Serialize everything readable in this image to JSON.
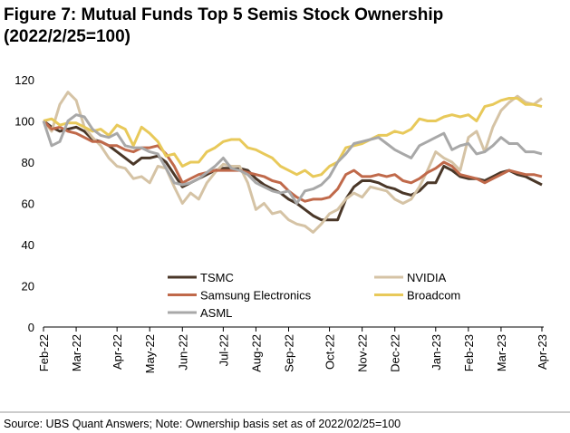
{
  "chart_data": {
    "type": "line",
    "title": [
      "Figure 7: Mutual Funds Top 5 Semis Stock Ownership",
      "(2022/2/25=100)"
    ],
    "note": "Source: UBS Quant Answers; Note: Ownership basis set as of 2022/02/25=100",
    "categories": [
      "Feb-22",
      null,
      null,
      null,
      "Mar-22",
      null,
      null,
      null,
      null,
      "Apr-22",
      null,
      null,
      null,
      "May-22",
      null,
      null,
      null,
      "Jun-22",
      null,
      null,
      null,
      null,
      "Jul-22",
      null,
      null,
      null,
      "Aug-22",
      null,
      null,
      null,
      "Sep-22",
      null,
      null,
      null,
      null,
      "Oct-22",
      null,
      null,
      null,
      "Nov-22",
      null,
      null,
      null,
      "Dec-22",
      null,
      null,
      null,
      null,
      "Jan-23",
      null,
      null,
      null,
      "Feb-23",
      null,
      null,
      null,
      "Mar-23",
      null,
      null,
      null,
      null,
      "Apr-23"
    ],
    "ylim": [
      0,
      120
    ],
    "yticks": [
      0,
      20,
      40,
      60,
      80,
      100,
      120
    ],
    "grid": false,
    "series": [
      {
        "name": "TSMC",
        "color": "#4a3728",
        "values": [
          100,
          97,
          95,
          96,
          97,
          95,
          91,
          90,
          88,
          85,
          82,
          79,
          82,
          82,
          83,
          80,
          74,
          68,
          70,
          72,
          74,
          76,
          77,
          77,
          77,
          76,
          72,
          69,
          67,
          65,
          62,
          60,
          57,
          54,
          52,
          52,
          52,
          62,
          68,
          71,
          71,
          70,
          68,
          67,
          65,
          64,
          66,
          70,
          70,
          78,
          76,
          73,
          72,
          72,
          71,
          73,
          75,
          76,
          74,
          73,
          71,
          69
        ]
      },
      {
        "name": "NVIDIA",
        "color": "#d5c3a5",
        "values": [
          100,
          95,
          108,
          114,
          110,
          97,
          92,
          88,
          82,
          78,
          77,
          72,
          73,
          70,
          78,
          77,
          68,
          60,
          65,
          62,
          70,
          75,
          79,
          78,
          78,
          70,
          57,
          60,
          55,
          56,
          52,
          50,
          49,
          46,
          50,
          55,
          57,
          62,
          65,
          63,
          68,
          67,
          66,
          62,
          60,
          62,
          68,
          76,
          85,
          82,
          80,
          76,
          92,
          95,
          85,
          97,
          105,
          109,
          112,
          109,
          108,
          111
        ]
      },
      {
        "name": "Samsung Electronics",
        "color": "#c0694a",
        "values": [
          100,
          96,
          97,
          95,
          94,
          92,
          90,
          90,
          88,
          88,
          86,
          85,
          87,
          87,
          88,
          84,
          78,
          70,
          72,
          74,
          75,
          76,
          76,
          76,
          76,
          75,
          74,
          73,
          71,
          70,
          66,
          63,
          61,
          62,
          62,
          63,
          67,
          74,
          76,
          73,
          73,
          74,
          73,
          74,
          71,
          70,
          72,
          75,
          77,
          80,
          78,
          74,
          73,
          72,
          70,
          72,
          74,
          76,
          75,
          74,
          74,
          73
        ]
      },
      {
        "name": "Broadcom",
        "color": "#e8c95a",
        "values": [
          100,
          101,
          98,
          99,
          99,
          97,
          95,
          96,
          93,
          98,
          96,
          88,
          97,
          94,
          90,
          83,
          84,
          78,
          80,
          80,
          85,
          87,
          90,
          91,
          91,
          87,
          86,
          84,
          82,
          78,
          76,
          74,
          76,
          73,
          74,
          78,
          80,
          87,
          88,
          89,
          91,
          93,
          93,
          95,
          94,
          96,
          101,
          100,
          100,
          102,
          103,
          102,
          103,
          100,
          107,
          108,
          110,
          111,
          111,
          108,
          108,
          107
        ]
      },
      {
        "name": "ASML",
        "color": "#a8a8a8",
        "values": [
          100,
          88,
          90,
          100,
          103,
          102,
          96,
          93,
          92,
          94,
          88,
          87,
          87,
          85,
          84,
          77,
          70,
          69,
          70,
          72,
          75,
          78,
          82,
          77,
          76,
          74,
          70,
          68,
          66,
          65,
          66,
          60,
          66,
          67,
          69,
          73,
          80,
          84,
          89,
          90,
          91,
          92,
          89,
          86,
          84,
          82,
          88,
          90,
          92,
          94,
          86,
          88,
          89,
          84,
          85,
          88,
          92,
          89,
          89,
          85,
          85,
          84
        ]
      }
    ]
  }
}
